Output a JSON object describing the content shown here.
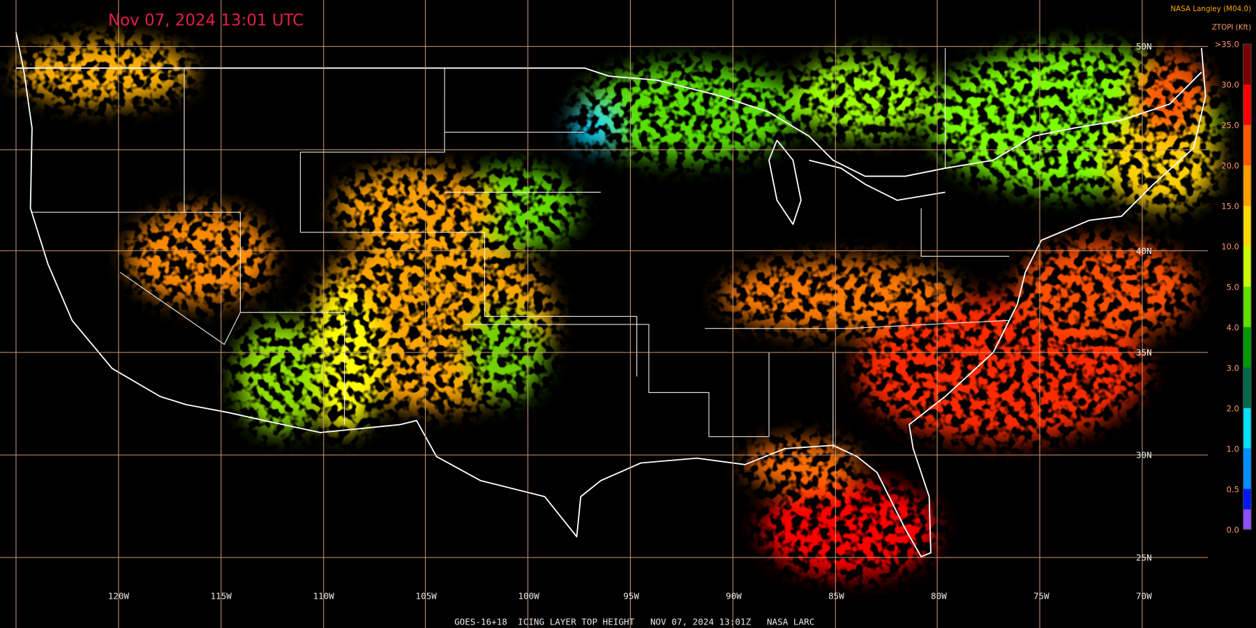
{
  "header": {
    "timestamp": "Nov 07, 2024 13:01 UTC",
    "credit": "NASA Langley (M04.0)",
    "units": "ZTOPI (Kft)"
  },
  "legend": {
    "labels": [
      ">35.0",
      "30.0",
      "25.0",
      "20.0",
      "15.0",
      "10.0",
      "5.0",
      "4.0",
      "3.0",
      "2.0",
      "1.0",
      "0.5",
      "0.0"
    ]
  },
  "map": {
    "lon_labels": [
      "120W",
      "115W",
      "110W",
      "105W",
      "100W",
      "95W",
      "90W",
      "85W",
      "80W",
      "75W",
      "70W"
    ],
    "lat_labels": [
      "50N",
      "40N",
      "35N",
      "30N",
      "25N"
    ]
  },
  "footer": {
    "caption": "GOES-16+18  ICING LAYER TOP HEIGHT   NOV 07, 2024 13:01Z   NASA LARC"
  }
}
